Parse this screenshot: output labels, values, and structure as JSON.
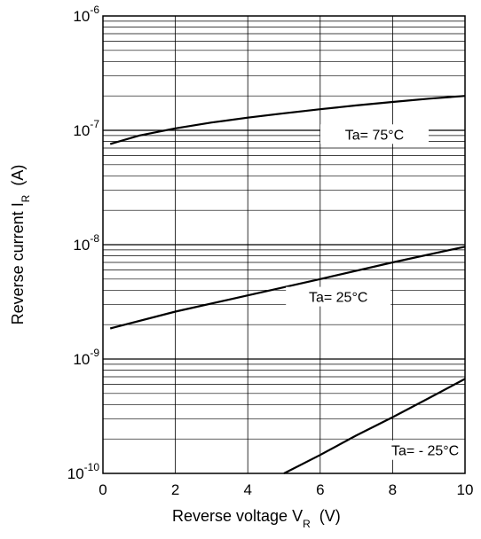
{
  "chart_data": {
    "type": "line",
    "title": "",
    "xlabel": {
      "main": "Reverse voltage  V",
      "sub": "R",
      "unit": "(V)"
    },
    "ylabel": {
      "main": "Reverse current  I",
      "sub": "R",
      "unit": "(A)"
    },
    "xlim": [
      0,
      10
    ],
    "ylim": [
      1e-10,
      1e-06
    ],
    "yscale": "log",
    "grid": true,
    "x_ticks": [
      "0",
      "2",
      "4",
      "6",
      "8",
      "10"
    ],
    "y_ticks": [
      {
        "base": "10",
        "exp": "-10",
        "value": 1e-10
      },
      {
        "base": "10",
        "exp": "-9",
        "value": 1e-09
      },
      {
        "base": "10",
        "exp": "-8",
        "value": 1e-08
      },
      {
        "base": "10",
        "exp": "-7",
        "value": 1e-07
      },
      {
        "base": "10",
        "exp": "-6",
        "value": 1e-06
      }
    ],
    "series": [
      {
        "name": "Ta= 75°C",
        "x": [
          0.2,
          1,
          2,
          3,
          4,
          5,
          6,
          7,
          8,
          9,
          10
        ],
        "y": [
          7.6e-08,
          9e-08,
          1.04e-07,
          1.17e-07,
          1.29e-07,
          1.41e-07,
          1.53e-07,
          1.65e-07,
          1.77e-07,
          1.89e-07,
          2e-07
        ]
      },
      {
        "name": "Ta= 25°C",
        "x": [
          0.2,
          2,
          4,
          6,
          8,
          10
        ],
        "y": [
          1.85e-09,
          2.6e-09,
          3.6e-09,
          5e-09,
          7e-09,
          9.6e-09
        ]
      },
      {
        "name": "Ta= - 25°C",
        "x": [
          5,
          6,
          7,
          8,
          9,
          10
        ],
        "y": [
          1e-10,
          1.45e-10,
          2.15e-10,
          3.1e-10,
          4.55e-10,
          6.7e-10
        ]
      }
    ]
  }
}
